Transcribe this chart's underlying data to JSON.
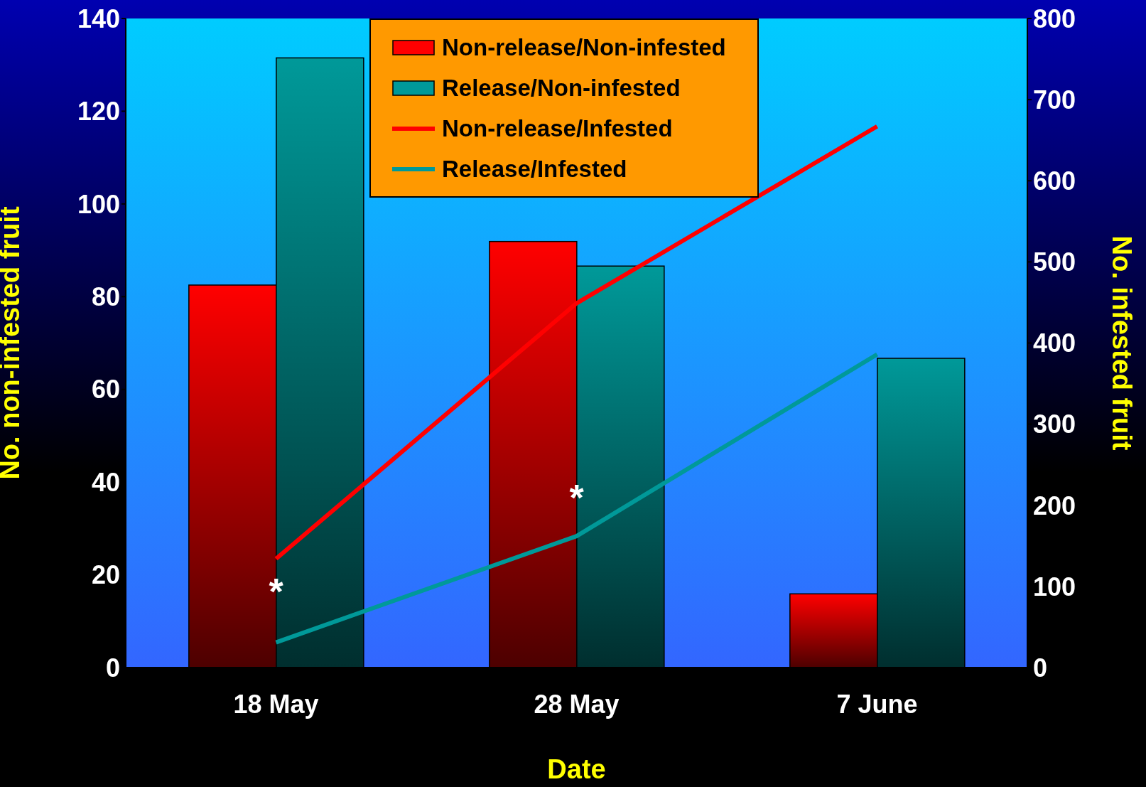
{
  "chart_data": {
    "type": "bar",
    "xlabel": "Date",
    "ylabel": "No. non-infested fruit",
    "y2label": "No. infested fruit",
    "categories": [
      "18 May",
      "28 May",
      "7 June"
    ],
    "series": [
      {
        "name": "Non-release/Non-infested",
        "color": "#ff0000",
        "values": [
          82.5,
          91.9,
          15.9
        ]
      },
      {
        "name": "Release/Non-infested",
        "color": "#009999",
        "values": [
          131.5,
          86.6,
          66.7
        ]
      },
      {
        "name": "Non-release/Infested",
        "type": "line",
        "axis": "y2",
        "color": "#ff0000",
        "values": [
          134,
          449,
          667
        ]
      },
      {
        "name": "Release/Infested",
        "type": "line",
        "axis": "y2",
        "color": "#009999",
        "values": [
          31,
          162,
          386
        ]
      }
    ],
    "ylim": [
      0,
      140
    ],
    "yticks": [
      0,
      20,
      40,
      60,
      80,
      100,
      120,
      140
    ],
    "y2lim": [
      0,
      800
    ],
    "y2ticks": [
      0,
      100,
      200,
      300,
      400,
      500,
      600,
      700,
      800
    ],
    "annotations": [
      {
        "text": "*",
        "x": "18 May",
        "y": 16.5
      },
      {
        "text": "*",
        "x": "28 May",
        "y": 36.7
      }
    ],
    "legend": "top",
    "grid": false,
    "marker": "none",
    "line_style": "solid"
  }
}
